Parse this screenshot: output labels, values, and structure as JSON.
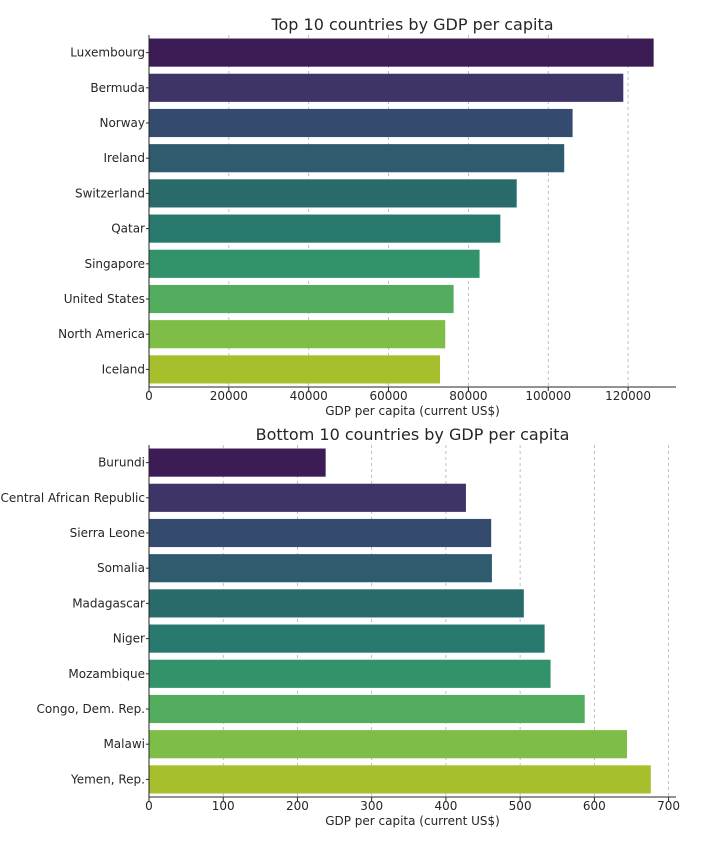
{
  "chart_data": [
    {
      "type": "bar",
      "orientation": "horizontal",
      "title": "Top 10 countries by GDP per capita",
      "xlabel": "GDP per capita (current US$)",
      "ylabel": "",
      "xlim": [
        0,
        132000
      ],
      "xticks": [
        0,
        20000,
        40000,
        60000,
        80000,
        100000,
        120000
      ],
      "grid": "x-dashed",
      "categories": [
        "Luxembourg",
        "Bermuda",
        "Norway",
        "Ireland",
        "Switzerland",
        "Qatar",
        "Singapore",
        "United States",
        "North America",
        "Iceland"
      ],
      "values": [
        126400,
        118800,
        106100,
        104000,
        92100,
        88000,
        82800,
        76300,
        74200,
        72900
      ],
      "colors": [
        "#3d1c55",
        "#3e3468",
        "#344b6f",
        "#2e5b6e",
        "#296a6b",
        "#26796c",
        "#32936b",
        "#52ad5e",
        "#7ebd47",
        "#a5bf2d"
      ]
    },
    {
      "type": "bar",
      "orientation": "horizontal",
      "title": "Bottom 10 countries by GDP per capita",
      "xlabel": "GDP per capita (current US$)",
      "ylabel": "",
      "xlim": [
        0,
        710
      ],
      "xticks": [
        0,
        100,
        200,
        300,
        400,
        500,
        600,
        700
      ],
      "grid": "x-dashed",
      "categories": [
        "Burundi",
        "Central African Republic",
        "Sierra Leone",
        "Somalia",
        "Madagascar",
        "Niger",
        "Mozambique",
        "Congo, Dem. Rep.",
        "Malawi",
        "Yemen, Rep."
      ],
      "values": [
        238,
        427,
        461,
        462,
        505,
        533,
        541,
        587,
        644,
        676
      ],
      "colors": [
        "#3d1c55",
        "#3e3468",
        "#344b6f",
        "#2e5b6e",
        "#296a6b",
        "#26796c",
        "#32936b",
        "#52ad5e",
        "#7ebd47",
        "#a5bf2d"
      ]
    }
  ]
}
